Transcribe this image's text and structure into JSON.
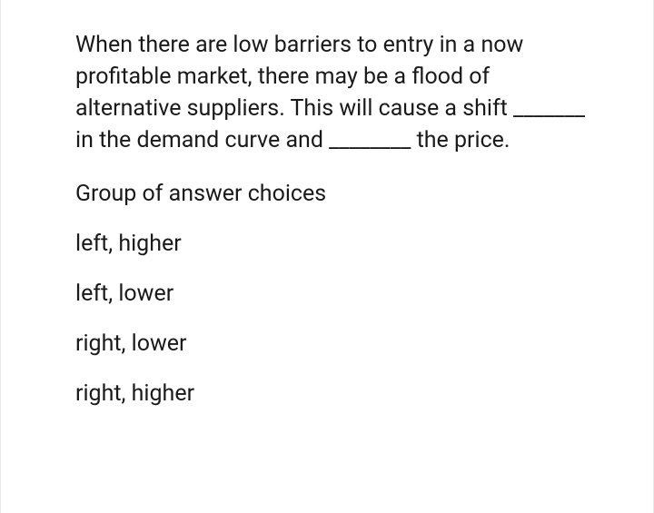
{
  "question": {
    "prompt": "When there are low barriers to entry in a now profitable market, there may be a flood of alternative suppliers. This will cause a shift _______ in the demand curve and ________ the price.",
    "group_label": "Group of answer choices",
    "choices": [
      "left, higher",
      "left, lower",
      "right, lower",
      "right, higher"
    ]
  },
  "style": {
    "background_color": "#ffffff",
    "text_color": "#1a1a1a",
    "border_color": "#e8e8e8",
    "font_size": 25,
    "line_height": 1.4
  }
}
